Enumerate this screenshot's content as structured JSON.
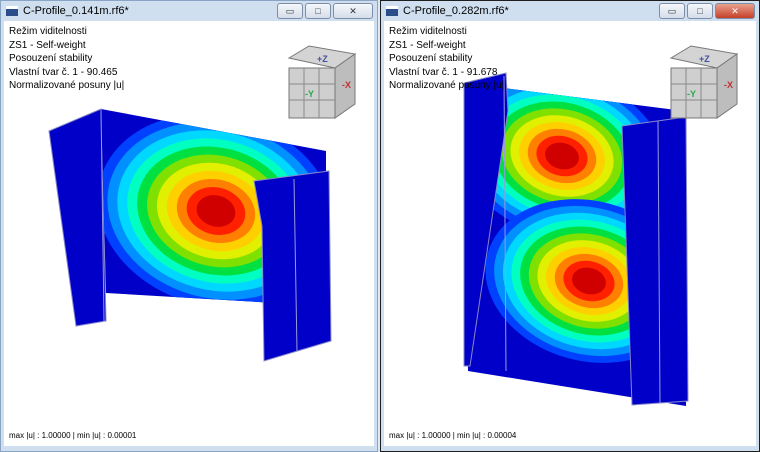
{
  "windows": [
    {
      "title": "C-Profile_0.141m.rf6*",
      "info": [
        "Režim viditelnosti",
        "ZS1 - Self-weight",
        "Posouzení stability",
        "Vlastní tvar č. 1 - 90.465",
        "Normalizované posuny |u|"
      ],
      "status": "max |u| : 1.00000 | min |u| : 0.00001",
      "active": false
    },
    {
      "title": "C-Profile_0.282m.rf6*",
      "info": [
        "Režim viditelnosti",
        "ZS1 - Self-weight",
        "Posouzení stability",
        "Vlastní tvar č. 1 - 91.678",
        "Normalizované posuny |u|"
      ],
      "status": "max |u| : 1.00000 | min |u| : 0.00004",
      "active": true
    }
  ],
  "buttons": {
    "minimize": "▭",
    "maximize": "□",
    "close": "✕"
  },
  "cube": {
    "front_label": "-Y",
    "side_label": "-X",
    "top_label": "+Z"
  },
  "colors": {
    "mesh": "#0000c0",
    "contours": [
      "#0000c8",
      "#0040ff",
      "#0090ff",
      "#00d8ff",
      "#00ffc0",
      "#00e040",
      "#80e000",
      "#e0f000",
      "#ffd000",
      "#ff8000",
      "#ff2000",
      "#d00000"
    ]
  }
}
